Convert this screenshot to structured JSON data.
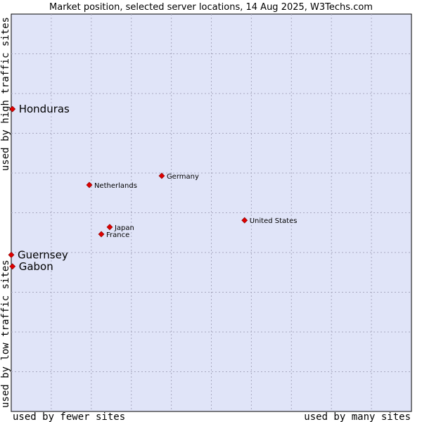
{
  "chart_data": {
    "type": "scatter",
    "title": "Market position, selected server locations, 14 Aug 2025, W3Techs.com",
    "xlabel_low": "used by fewer sites",
    "xlabel_high": "used by many sites",
    "ylabel_low": "used by low traffic sites",
    "ylabel_high": "used by high traffic sites",
    "xlim": [
      0,
      100
    ],
    "ylim": [
      0,
      100
    ],
    "grid": true,
    "colors": {
      "plot_bg": "#e0e4f8",
      "grid": "#a8a8c0",
      "marker": "#e00000",
      "marker_stroke": "#800000"
    },
    "points": [
      {
        "name": "Honduras",
        "x": 0.3,
        "y": 76.1,
        "size": "large"
      },
      {
        "name": "Germany",
        "x": 37.6,
        "y": 59.3,
        "size": "small"
      },
      {
        "name": "Netherlands",
        "x": 19.5,
        "y": 57.0,
        "size": "small"
      },
      {
        "name": "United States",
        "x": 58.3,
        "y": 48.1,
        "size": "small"
      },
      {
        "name": "Japan",
        "x": 24.6,
        "y": 46.4,
        "size": "small"
      },
      {
        "name": "France",
        "x": 22.5,
        "y": 44.6,
        "size": "small"
      },
      {
        "name": "Guernsey",
        "x": 0.0,
        "y": 39.4,
        "size": "large"
      },
      {
        "name": "Gabon",
        "x": 0.3,
        "y": 36.5,
        "size": "large"
      }
    ]
  }
}
